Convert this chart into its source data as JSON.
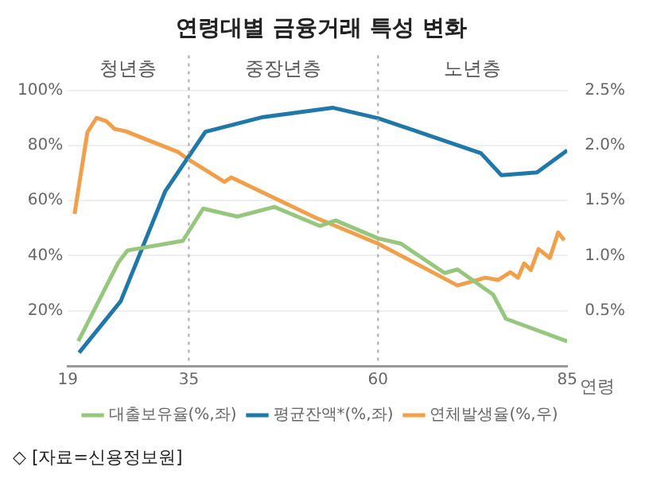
{
  "chart_data": {
    "type": "line",
    "title": "연령대별 금융거래 특성 변화",
    "xlabel": "연령",
    "xlim": [
      19,
      85
    ],
    "xticks": [
      19,
      35,
      60,
      85
    ],
    "ylim": [
      0,
      100
    ],
    "yticks": [
      {
        "value": 20,
        "label": "20%"
      },
      {
        "value": 40,
        "label": "40%"
      },
      {
        "value": 60,
        "label": "60%"
      },
      {
        "value": 80,
        "label": "80%"
      },
      {
        "value": 100,
        "label": "100%"
      }
    ],
    "y2lim": [
      0,
      2.5
    ],
    "y2ticks": [
      {
        "value": 0.5,
        "label": "0.5%"
      },
      {
        "value": 1.0,
        "label": "1.0%"
      },
      {
        "value": 1.5,
        "label": "1.5%"
      },
      {
        "value": 2.0,
        "label": "2.0%"
      },
      {
        "value": 2.5,
        "label": "2.5%"
      }
    ],
    "grid": "y",
    "legend": "bottom",
    "marker": "none",
    "line_style": "solid",
    "ref_lines": [
      {
        "axis": "x",
        "value": 35,
        "color": "#aaaaaa",
        "line_style": "dotted"
      },
      {
        "axis": "x",
        "value": 60,
        "color": "#aaaaaa",
        "line_style": "dotted"
      }
    ],
    "series": [
      {
        "name": "대출보유율(%,좌)",
        "color": "#97c77f",
        "x": [
          20.4,
          25.7,
          26.9,
          34.2,
          36.9,
          41.4,
          46.3,
          52.3,
          54.4,
          60,
          63,
          68.8,
          70.5,
          75.2,
          76.9,
          85
        ],
        "values": [
          9,
          37.6,
          41.9,
          45.4,
          57.1,
          54.2,
          57.7,
          50.8,
          52.8,
          46.3,
          44.4,
          33.7,
          35,
          25.9,
          17.1,
          8.9
        ]
      },
      {
        "name": "평균잔액*(%,좌)",
        "color": "#1f78a8",
        "x": [
          20.5,
          26,
          31.9,
          37.2,
          44.6,
          54,
          60,
          73.6,
          76.3,
          81,
          85
        ],
        "values": [
          4.8,
          23.5,
          63.5,
          85,
          90.2,
          93.7,
          89.9,
          77.2,
          69.2,
          70.2,
          78.2
        ]
      },
      {
        "name": "연체발생율(%,우)",
        "color": "#f0a04b",
        "axis": "y2",
        "x": [
          19.9,
          21.6,
          22.8,
          24.1,
          25.2,
          26.6,
          33.6,
          34.8,
          39.7,
          40.6,
          51.6,
          60,
          70.5,
          73.6,
          74.2,
          75.9,
          77.5,
          78.5,
          79.3,
          80.2,
          81.2,
          82.7,
          83.8,
          84.6
        ],
        "values": [
          1.38,
          2.12,
          2.25,
          2.22,
          2.15,
          2.13,
          1.94,
          1.88,
          1.67,
          1.71,
          1.35,
          1.11,
          0.73,
          0.79,
          0.8,
          0.78,
          0.85,
          0.8,
          0.93,
          0.87,
          1.06,
          0.98,
          1.21,
          1.14
        ]
      }
    ],
    "annotations": [
      "청년층",
      "중장년층",
      "노년층",
      "◇ [자료=신용정보원]"
    ]
  }
}
